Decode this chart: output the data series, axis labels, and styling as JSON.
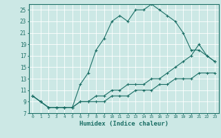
{
  "xlabel": "Humidex (Indice chaleur)",
  "bg_color": "#cce8e5",
  "grid_color": "#b0d4d0",
  "line_color": "#1a6e65",
  "xlim": [
    -0.5,
    23.5
  ],
  "ylim": [
    7,
    26
  ],
  "yticks": [
    7,
    9,
    11,
    13,
    15,
    17,
    19,
    21,
    23,
    25
  ],
  "xticks": [
    0,
    1,
    2,
    3,
    4,
    5,
    6,
    7,
    8,
    9,
    10,
    11,
    12,
    13,
    14,
    15,
    16,
    17,
    18,
    19,
    20,
    21,
    22,
    23
  ],
  "line1_x": [
    0,
    1,
    2,
    3,
    4,
    5,
    6,
    7,
    8,
    9,
    10,
    11,
    12,
    13,
    14,
    15,
    16,
    17,
    18,
    19,
    20,
    21,
    22,
    23
  ],
  "line1_y": [
    10,
    9,
    8,
    8,
    8,
    8,
    12,
    14,
    18,
    20,
    23,
    24,
    23,
    25,
    25,
    26,
    25,
    24,
    23,
    21,
    18,
    18,
    17,
    16
  ],
  "line2_x": [
    0,
    1,
    2,
    3,
    4,
    5,
    6,
    7,
    8,
    9,
    10,
    11,
    12,
    13,
    14,
    15,
    16,
    17,
    18,
    19,
    20,
    21,
    22,
    23
  ],
  "line2_y": [
    10,
    9,
    8,
    8,
    8,
    8,
    9,
    9,
    10,
    10,
    11,
    11,
    12,
    12,
    12,
    13,
    13,
    14,
    15,
    16,
    17,
    19,
    17,
    16
  ],
  "line3_x": [
    0,
    1,
    2,
    3,
    4,
    5,
    6,
    7,
    8,
    9,
    10,
    11,
    12,
    13,
    14,
    15,
    16,
    17,
    18,
    19,
    20,
    21,
    22,
    23
  ],
  "line3_y": [
    10,
    9,
    8,
    8,
    8,
    8,
    9,
    9,
    9,
    9,
    10,
    10,
    10,
    11,
    11,
    11,
    12,
    12,
    13,
    13,
    13,
    14,
    14,
    14
  ]
}
